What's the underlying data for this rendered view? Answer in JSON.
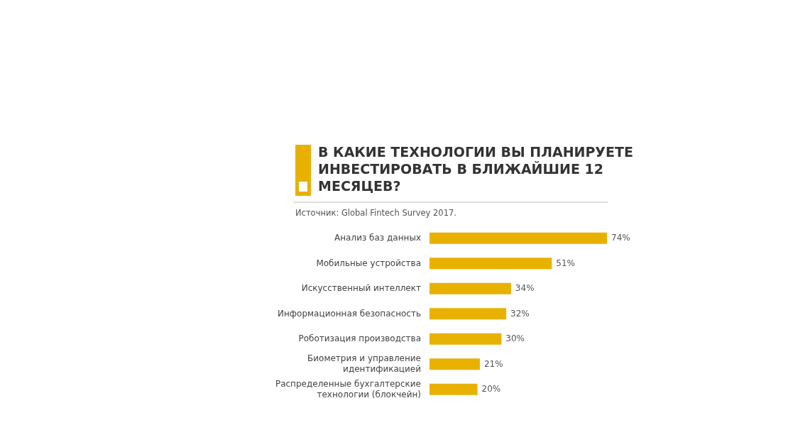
{
  "chart_data": {
    "type": "bar",
    "orientation": "horizontal",
    "title": "В КАКИЕ ТЕХНОЛОГИИ ВЫ ПЛАНИРУЕТЕ ИНВЕСТИРОВАТЬ В БЛИЖАЙШИЕ 12 МЕСЯЦЕВ?",
    "subtitle": "Источник: Global Fintech Survey 2017.",
    "categories": [
      "Анализ баз данных",
      "Мобильные устройства",
      "Искусственный интеллект",
      "Информационная безопасность",
      "Роботизация производства",
      "Биометрия и управление идентификацией",
      "Распределенные бухгалтерские технологии (блокчейн)"
    ],
    "values": [
      74,
      51,
      34,
      32,
      30,
      21,
      20
    ],
    "value_labels": [
      "74%",
      "51%",
      "34%",
      "32%",
      "30%",
      "21%",
      "20%"
    ],
    "color": "#e8b100"
  }
}
